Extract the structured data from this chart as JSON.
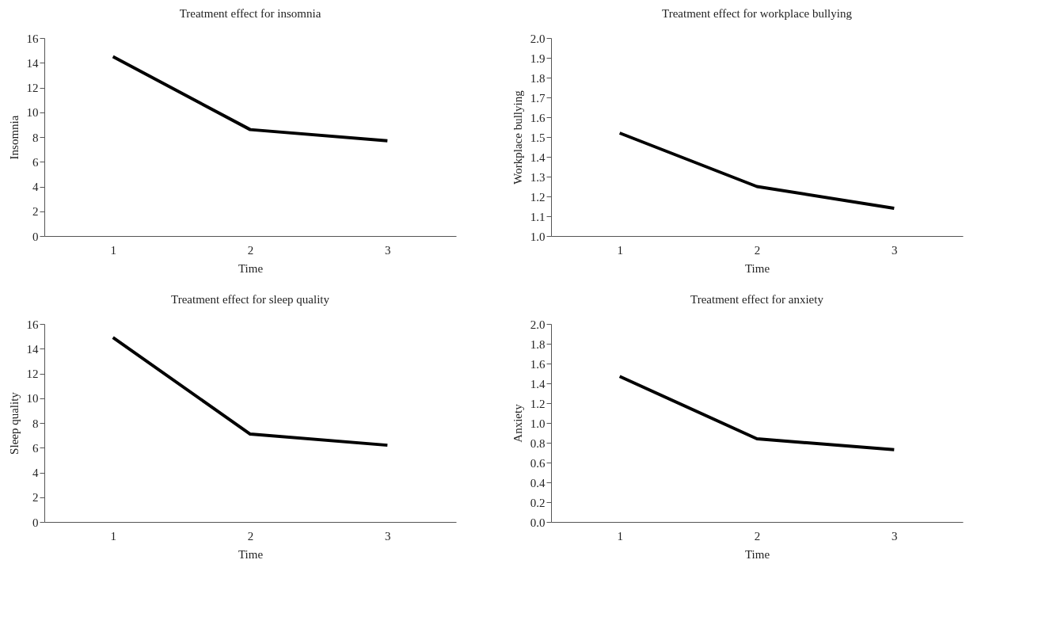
{
  "chart_data": [
    {
      "type": "line",
      "title": "Treatment effect for insomnia",
      "xlabel": "Time",
      "ylabel": "Insomnia",
      "categories": [
        "1",
        "2",
        "3"
      ],
      "series": [
        {
          "color": "#000000",
          "values": [
            14.5,
            8.6,
            7.7
          ]
        }
      ],
      "ylim": [
        0,
        16
      ],
      "yticks": [
        0,
        2,
        4,
        6,
        8,
        10,
        12,
        14,
        16
      ]
    },
    {
      "type": "line",
      "title": "Treatment effect for workplace bullying",
      "xlabel": "Time",
      "ylabel": "Workplace bullying",
      "categories": [
        "1",
        "2",
        "3"
      ],
      "series": [
        {
          "color": "#000000",
          "values": [
            1.52,
            1.25,
            1.14
          ]
        }
      ],
      "ylim": [
        1.0,
        2.0
      ],
      "yticks": [
        {
          "value": 1.0,
          "label": "1.0"
        },
        1.1,
        1.2,
        1.3,
        1.4,
        1.5,
        1.6,
        1.7,
        1.8,
        1.9,
        {
          "value": 2.0,
          "label": "2.0"
        }
      ]
    },
    {
      "type": "line",
      "title": "Treatment effect for sleep quality",
      "xlabel": "Time",
      "ylabel": "Sleep quality",
      "categories": [
        "1",
        "2",
        "3"
      ],
      "series": [
        {
          "color": "#000000",
          "values": [
            14.9,
            7.1,
            6.2
          ]
        }
      ],
      "ylim": [
        0,
        16
      ],
      "yticks": [
        0,
        2,
        4,
        6,
        8,
        10,
        12,
        14,
        16
      ]
    },
    {
      "type": "line",
      "title": "Treatment effect for anxiety",
      "xlabel": "Time",
      "ylabel": "Anxiety",
      "categories": [
        "1",
        "2",
        "3"
      ],
      "series": [
        {
          "color": "#000000",
          "values": [
            1.47,
            0.84,
            0.73
          ]
        }
      ],
      "ylim": [
        0.0,
        2.0
      ],
      "yticks": [
        {
          "value": 0.0,
          "label": "0.0"
        },
        0.2,
        0.4,
        0.6,
        0.8,
        {
          "value": 1.0,
          "label": "1.0"
        },
        1.2,
        1.4,
        1.6,
        1.8,
        {
          "value": 2.0,
          "label": "2.0"
        }
      ]
    }
  ]
}
